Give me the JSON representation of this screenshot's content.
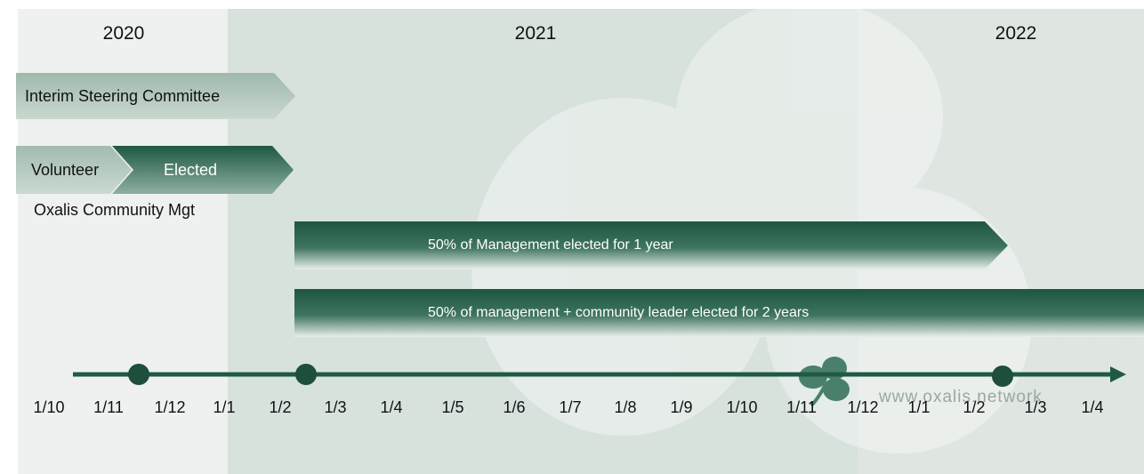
{
  "years": {
    "y2020": "2020",
    "y2021": "2021",
    "y2022": "2022"
  },
  "bars": {
    "interim": "Interim Steering Committee",
    "volunteer": "Volunteer",
    "elected": "Elected",
    "community_caption": "Oxalis Community Mgt",
    "half_1yr": "50% of Management elected for 1 year",
    "half_2yr": "50% of management  + community leader elected for 2 years"
  },
  "timeline": {
    "ticks": [
      "1/10",
      "1/11",
      "1/12",
      "1/1",
      "1/2",
      "1/3",
      "1/4",
      "1/5",
      "1/6",
      "1/7",
      "1/8",
      "1/9",
      "1/10",
      "1/11",
      "1/12",
      "1/1",
      "1/2",
      "1/3",
      "1/4"
    ]
  },
  "watermark": {
    "url": "www.oxalis.network",
    "icon": "shamrock-logo-icon"
  },
  "colors": {
    "dark_green": "#1e5a44",
    "light_chevron": "#a9c1b5",
    "band_2020": "#eef1ef",
    "band_2021": "#d8e2dd"
  }
}
